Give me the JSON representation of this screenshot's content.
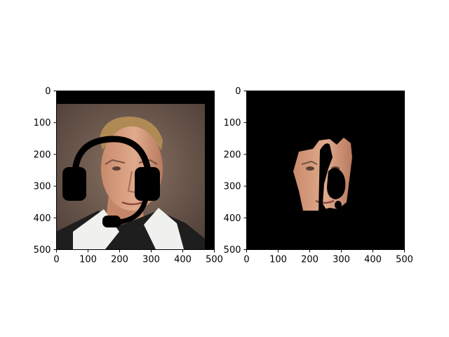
{
  "chart_data": [
    {
      "type": "image",
      "panel": "left",
      "xlim": [
        0,
        500
      ],
      "ylim": [
        500,
        0
      ],
      "x_ticks": [
        "0",
        "100",
        "200",
        "300",
        "400",
        "500"
      ],
      "y_ticks": [
        "0",
        "100",
        "200",
        "300",
        "400",
        "500"
      ],
      "x_tick_values": [
        0,
        100,
        200,
        300,
        400,
        500
      ],
      "y_tick_values": [
        0,
        100,
        200,
        300,
        400,
        500
      ],
      "content": "face-photo-with-headset-overlay",
      "colors": {
        "background": "#6b5a4e",
        "frame": "#000000",
        "skin": "#d9a184",
        "hair": "#b08a55",
        "shirt_white": "#f0f0ee",
        "shirt_dark": "#1e1e1e"
      }
    },
    {
      "type": "image",
      "panel": "right",
      "xlim": [
        0,
        500
      ],
      "ylim": [
        500,
        0
      ],
      "x_ticks": [
        "0",
        "100",
        "200",
        "300",
        "400",
        "500"
      ],
      "y_ticks": [
        "0",
        "100",
        "200",
        "300",
        "400",
        "500"
      ],
      "x_tick_values": [
        0,
        100,
        200,
        300,
        400,
        500
      ],
      "y_tick_values": [
        0,
        100,
        200,
        300,
        400,
        500
      ],
      "content": "masked-face-segment",
      "colors": {
        "background": "#000000",
        "skin": "#d9a184"
      }
    }
  ]
}
